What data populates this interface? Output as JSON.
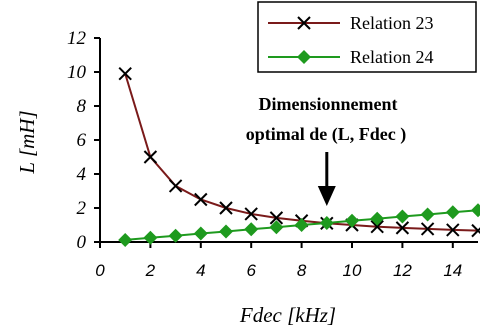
{
  "chart_data": {
    "type": "line",
    "title": "",
    "xlabel": "Fdec [kHz]",
    "ylabel": "L [mH]",
    "xlim": [
      0,
      15
    ],
    "ylim": [
      0,
      12
    ],
    "x_ticks": [
      "0",
      "2",
      "4",
      "6",
      "8",
      "10",
      "12",
      "14"
    ],
    "y_ticks": [
      "0",
      "2",
      "4",
      "6",
      "8",
      "10",
      "12"
    ],
    "grid": false,
    "legend_position": "top-right",
    "annotation": {
      "line1": "Dimensionnement",
      "line2": "optimal de (L, Fdec )",
      "arrow_x": 9
    },
    "series": [
      {
        "name": "Relation 23",
        "color": "#7a1a1a",
        "marker": "x",
        "x": [
          1,
          2,
          3,
          4,
          5,
          6,
          7,
          8,
          9,
          10,
          11,
          12,
          13,
          14,
          15
        ],
        "y": [
          9.9,
          5.0,
          3.3,
          2.5,
          2.0,
          1.65,
          1.42,
          1.25,
          1.1,
          1.0,
          0.9,
          0.83,
          0.77,
          0.71,
          0.67
        ]
      },
      {
        "name": "Relation 24",
        "color": "#1e9a1e",
        "marker": "diamond",
        "x": [
          1,
          2,
          3,
          4,
          5,
          6,
          7,
          8,
          9,
          10,
          11,
          12,
          13,
          14,
          15
        ],
        "y": [
          0.12,
          0.25,
          0.37,
          0.5,
          0.62,
          0.75,
          0.87,
          1.0,
          1.12,
          1.25,
          1.37,
          1.5,
          1.62,
          1.75,
          1.87
        ]
      }
    ]
  }
}
